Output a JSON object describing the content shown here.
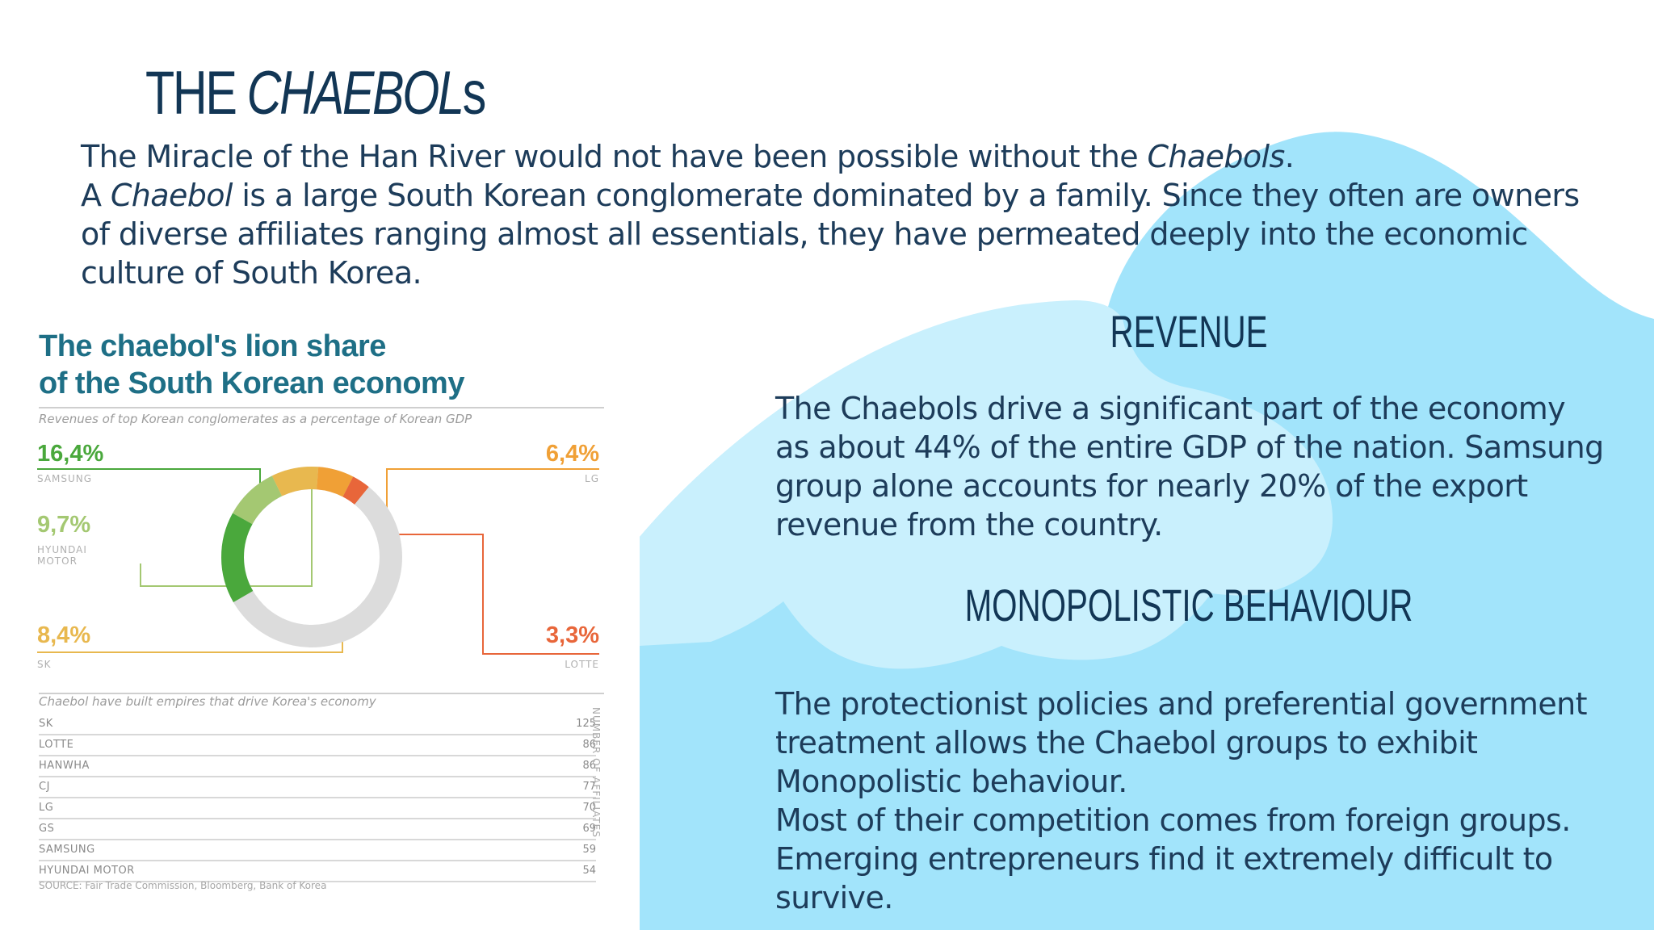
{
  "slide": {
    "title_plain": "THE ",
    "title_italic": "CHAEBOL",
    "title_suffix": "s",
    "intro": {
      "line1_a": "The Miracle of the Han River would not have been possible without the ",
      "line1_italic": "Chaebols",
      "line1_b": ".",
      "line2_a": "A ",
      "line2_italic": "Chaebol",
      "line2_b": " is a large South Korean conglomerate dominated by a family. Since they often are owners of diverse affiliates ranging almost all essentials, they have permeated deeply into the economic culture of South Korea."
    },
    "revenue": {
      "heading": "REVENUE",
      "text": "The Chaebols drive a significant part of the economy as about 44% of the entire GDP of the nation. Samsung group alone accounts for nearly 20% of the export revenue from the country."
    },
    "monopoly": {
      "heading": "MONOPOLISTIC BEHAVIOUR",
      "text_p1": "The protectionist policies and preferential government treatment allows the Chaebol groups to exhibit Monopolistic behaviour.",
      "text_p2": "Most of their competition comes from foreign groups. Emerging entrepreneurs find it extremely difficult to survive."
    },
    "colors": {
      "cloud_dark": "#a2e4fb",
      "cloud_light": "#c9f0fd",
      "heading": "#123655",
      "text": "#1d3c5a"
    }
  },
  "infographic": {
    "title_line1": "The chaebol's lion share",
    "title_line2": "of the South Korean economy",
    "subtitle": "Revenues of top Korean conglomerates as a percentage of Korean GDP",
    "donut": [
      {
        "company": "SAMSUNG",
        "pct_label": "16,4%",
        "value": 16.4,
        "color": "#4aa83c"
      },
      {
        "company": "HYUNDAI MOTOR",
        "pct_label": "9,7%",
        "value": 9.7,
        "color": "#a4c872"
      },
      {
        "company": "SK",
        "pct_label": "8,4%",
        "value": 8.4,
        "color": "#e8b84f"
      },
      {
        "company": "LG",
        "pct_label": "6,4%",
        "value": 6.4,
        "color": "#f0a036"
      },
      {
        "company": "LOTTE",
        "pct_label": "3,3%",
        "value": 3.3,
        "color": "#e8663a"
      }
    ],
    "donut_rest_color": "#dcdcdc",
    "labels": {
      "samsung_pct": "16,4%",
      "samsung": "SAMSUNG",
      "hyundai_pct": "9,7%",
      "hyundai_l1": "HYUNDAI",
      "hyundai_l2": "MOTOR",
      "sk_pct": "8,4%",
      "sk": "SK",
      "lg_pct": "6,4%",
      "lg": "LG",
      "lotte_pct": "3,3%",
      "lotte": "LOTTE"
    },
    "affiliates_caption": "Chaebol have built empires that drive Korea's economy",
    "affiliates_axis": "NUMBER OF AFFILIATES",
    "affiliates": [
      {
        "name": "SK",
        "count": "125"
      },
      {
        "name": "LOTTE",
        "count": "86"
      },
      {
        "name": "HANWHA",
        "count": "86"
      },
      {
        "name": "CJ",
        "count": "77"
      },
      {
        "name": "LG",
        "count": "70"
      },
      {
        "name": "GS",
        "count": "69"
      },
      {
        "name": "SAMSUNG",
        "count": "59"
      },
      {
        "name": "HYUNDAI MOTOR",
        "count": "54"
      }
    ],
    "source": "SOURCE: Fair Trade Commission, Bloomberg, Bank of Korea"
  }
}
